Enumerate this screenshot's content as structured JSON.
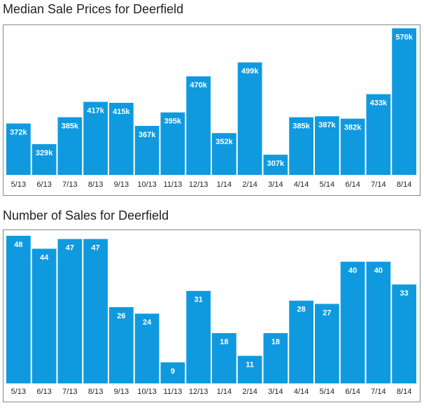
{
  "chart_data": [
    {
      "type": "bar",
      "title": "Median Sale Prices for Deerfield",
      "categories": [
        "5/13",
        "6/13",
        "7/13",
        "8/13",
        "9/13",
        "10/13",
        "11/13",
        "12/13",
        "1/14",
        "2/14",
        "3/14",
        "4/14",
        "5/14",
        "6/14",
        "7/14",
        "8/14"
      ],
      "values": [
        372000,
        329000,
        385000,
        417000,
        415000,
        367000,
        395000,
        470000,
        352000,
        499000,
        307000,
        385000,
        387000,
        382000,
        433000,
        570000
      ],
      "value_labels": [
        "372k",
        "329k",
        "385k",
        "417k",
        "415k",
        "367k",
        "395k",
        "470k",
        "352k",
        "499k",
        "307k",
        "385k",
        "387k",
        "382k",
        "433k",
        "570k"
      ],
      "color": "#0f9ae0",
      "ylim": [
        265000,
        575000
      ]
    },
    {
      "type": "bar",
      "title": "Number of Sales for Deerfield",
      "categories": [
        "5/13",
        "6/13",
        "7/13",
        "8/13",
        "9/13",
        "10/13",
        "11/13",
        "12/13",
        "1/14",
        "2/14",
        "3/14",
        "4/14",
        "5/14",
        "6/14",
        "7/14",
        "8/14"
      ],
      "values": [
        48,
        44,
        47,
        47,
        26,
        24,
        9,
        31,
        18,
        11,
        18,
        28,
        27,
        40,
        40,
        33
      ],
      "color": "#0f9ae0",
      "ylim": [
        2.5,
        49.5
      ]
    }
  ]
}
